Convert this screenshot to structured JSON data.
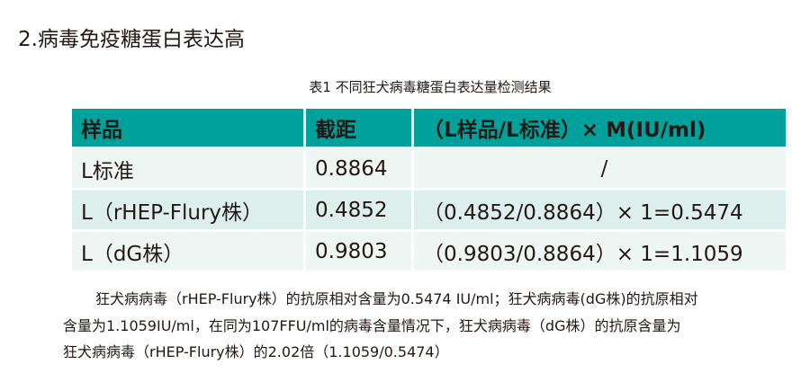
{
  "heading": "2.病毒免疫糖蛋白表达高",
  "table_caption": "表1 不同狂犬病毒糖蛋白表达量检测结果",
  "table": {
    "headers": [
      "样品",
      "截距",
      "（L样品/L标准）× M(IU/ml)"
    ],
    "rows": [
      [
        "L标准",
        "0.8864",
        "/"
      ],
      [
        "L（rHEP-Flury株）",
        "0.4852",
        "（0.4852/0.8864）× 1=0.5474"
      ],
      [
        "L（dG株）",
        "0.9803",
        "（0.9803/0.8864）× 1=1.1059"
      ]
    ]
  },
  "colors": {
    "header_bg": "#00a19a",
    "row_bg_light": "#eef6f4",
    "row_bg_alt": "#dcefec"
  },
  "paragraph": {
    "line1": "狂犬病病毒（rHEP-Flury株）的抗原相对含量为0.5474 IU/ml；狂犬病病毒(dG株)的抗原相对",
    "line2": "含量为1.1059IU/ml，在同为107FFU/ml的病毒含量情况下，狂犬病病毒（dG株）的抗原含量为",
    "line3": "狂犬病病毒（rHEP-Flury株）的2.02倍（1.1059/0.5474）"
  }
}
